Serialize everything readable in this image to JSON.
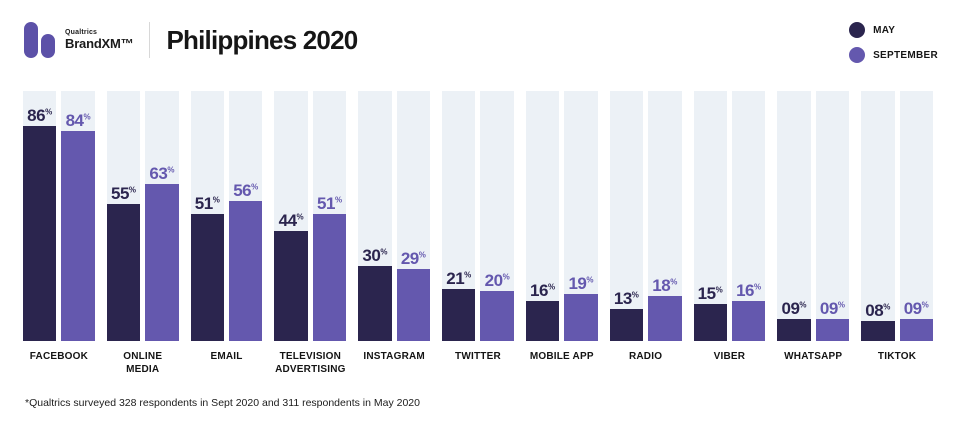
{
  "header": {
    "logo_brand_small": "Qualtrics",
    "logo_brand_main": "BrandXM™",
    "title": "Philippines 2020"
  },
  "legend": {
    "items": [
      {
        "label": "MAY",
        "color": "#2b254e"
      },
      {
        "label": "SEPTEMBER",
        "color": "#6458ae"
      }
    ]
  },
  "colors": {
    "may": "#2b254e",
    "september": "#6458ae",
    "track": "#ecf1f6",
    "logo": "#5c51a8"
  },
  "footnote": "*Qualtrics surveyed 328 respondents in Sept 2020 and 311 respondents in May 2020",
  "chart_data": {
    "type": "bar",
    "title": "Philippines 2020",
    "categories": [
      "FACEBOOK",
      "ONLINE MEDIA",
      "EMAIL",
      "TELEVISION ADVERTISING",
      "INSTAGRAM",
      "TWITTER",
      "MOBILE APP",
      "RADIO",
      "VIBER",
      "WHATSAPP",
      "TIKTOK"
    ],
    "series": [
      {
        "name": "MAY",
        "values": [
          86,
          55,
          51,
          44,
          30,
          21,
          16,
          13,
          15,
          9,
          8
        ],
        "labels": [
          "86",
          "55",
          "51",
          "44",
          "30",
          "21",
          "16",
          "13",
          "15",
          "09",
          "08"
        ]
      },
      {
        "name": "SEPTEMBER",
        "values": [
          84,
          63,
          56,
          51,
          29,
          20,
          19,
          18,
          16,
          9,
          9
        ],
        "labels": [
          "84",
          "63",
          "56",
          "51",
          "29",
          "20",
          "19",
          "18",
          "16",
          "09",
          "09"
        ]
      }
    ],
    "unit": "%",
    "ylim": [
      0,
      100
    ],
    "grid": false,
    "legend_position": "top-right",
    "value_labels": "above-bars"
  }
}
